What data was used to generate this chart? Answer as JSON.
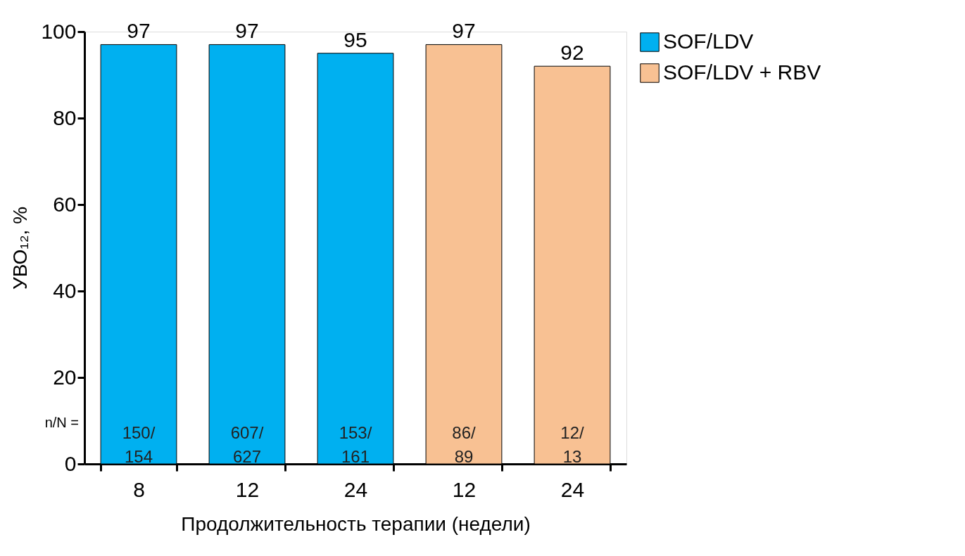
{
  "chart_data": {
    "type": "bar",
    "xlabel": "Продолжительность  терапии (недели)",
    "ylabel": "УВО₁₂, %",
    "categories": [
      "8",
      "12",
      "24",
      "12",
      "24"
    ],
    "series": [
      {
        "name": "SOF/LDV",
        "color": "#00b0f0",
        "values": [
          97,
          97,
          95,
          null,
          null
        ]
      },
      {
        "name": "SOF/LDV + RBV",
        "color": "#f8c193",
        "values": [
          null,
          null,
          null,
          97,
          92
        ]
      }
    ],
    "ylim": [
      0,
      100
    ],
    "yticks": [
      0,
      20,
      40,
      60,
      80,
      100
    ],
    "grid": false,
    "legend": "right",
    "data_labels": true,
    "annotations": [
      "n/N =",
      "150/\n154",
      "607/\n627",
      "153/\n161",
      "86/\n89",
      "12/\n13"
    ]
  }
}
